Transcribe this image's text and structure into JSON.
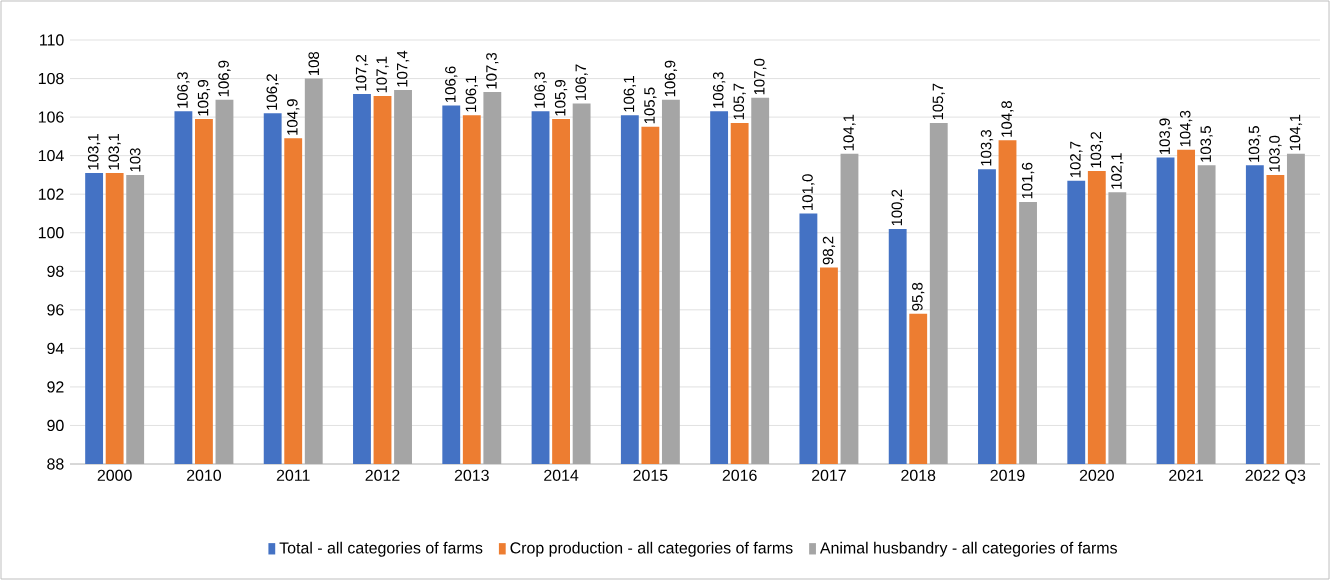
{
  "chart_data": {
    "type": "bar",
    "categories": [
      "2000",
      "2010",
      "2011",
      "2012",
      "2013",
      "2014",
      "2015",
      "2016",
      "2017",
      "2018",
      "2019",
      "2020",
      "2021",
      "2022 Q3"
    ],
    "series": [
      {
        "name": "Total - all categories of farms",
        "color": "#4472c4",
        "values": [
          103.1,
          106.3,
          106.2,
          107.2,
          106.6,
          106.3,
          106.1,
          106.3,
          101.0,
          100.2,
          103.3,
          102.7,
          103.9,
          103.5
        ],
        "value_labels": [
          "103,1",
          "106,3",
          "106,2",
          "107,2",
          "106,6",
          "106,3",
          "106,1",
          "106,3",
          "101,0",
          "100,2",
          "103,3",
          "102,7",
          "103,9",
          "103,5"
        ]
      },
      {
        "name": "Crop production - all categories of farms",
        "color": "#ed7d31",
        "values": [
          103.1,
          105.9,
          104.9,
          107.1,
          106.1,
          105.9,
          105.5,
          105.7,
          98.2,
          95.8,
          104.8,
          103.2,
          104.3,
          103.0
        ],
        "value_labels": [
          "103,1",
          "105,9",
          "104,9",
          "107,1",
          "106,1",
          "105,9",
          "105,5",
          "105,7",
          "98,2",
          "95,8",
          "104,8",
          "103,2",
          "104,3",
          "103,0"
        ]
      },
      {
        "name": "Animal husbandry - all categories of farms",
        "color": "#a5a5a5",
        "values": [
          103,
          106.9,
          108,
          107.4,
          107.3,
          106.7,
          106.9,
          107.0,
          104.1,
          105.7,
          101.6,
          102.1,
          103.5,
          104.1
        ],
        "value_labels": [
          "103",
          "106,9",
          "108",
          "107,4",
          "107,3",
          "106,7",
          "106,9",
          "107,0",
          "104,1",
          "105,7",
          "101,6",
          "102,1",
          "103,5",
          "104,1"
        ]
      }
    ],
    "ylim": [
      88,
      110
    ],
    "yticks": [
      88,
      90,
      92,
      94,
      96,
      98,
      100,
      102,
      104,
      106,
      108,
      110
    ],
    "grid": "y",
    "legend": "bottom"
  }
}
